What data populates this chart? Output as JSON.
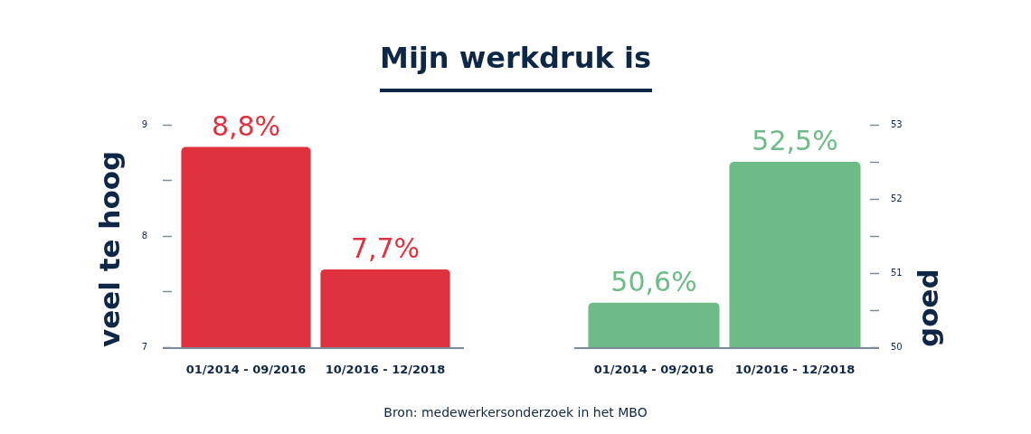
{
  "chart_data": [
    {
      "type": "bar",
      "title": "Mijn werkdruk is",
      "ylabel": "veel te hoog",
      "categories": [
        "01/2014 - 09/2016",
        "10/2016 - 12/2018"
      ],
      "values": [
        8.8,
        7.7
      ],
      "color": "#e0313f",
      "value_labels": [
        "8,8%",
        "7,7%"
      ],
      "ylim": [
        7,
        9
      ],
      "yticks": [
        7,
        {
          "value": 7.5,
          "label": null
        },
        8,
        {
          "value": 8.5,
          "label": null
        },
        9
      ],
      "annotations": [
        "Bron: medewerkersonderzoek in het MBO"
      ]
    },
    {
      "type": "bar",
      "y2label": "goed",
      "categories": [
        "01/2014 - 09/2016",
        "10/2016 - 12/2018"
      ],
      "series": [
        {
          "axis": "y2",
          "color": "#6dbb87",
          "values": [
            50.6,
            52.5
          ],
          "value_labels": [
            "50,6%",
            "52,5%"
          ]
        }
      ],
      "y2lim": [
        50,
        53
      ],
      "y2ticks": [
        50,
        {
          "value": 50.5,
          "label": null
        },
        51,
        {
          "value": 51.5,
          "label": null
        },
        52,
        {
          "value": 52.5,
          "label": null
        },
        53
      ]
    }
  ]
}
